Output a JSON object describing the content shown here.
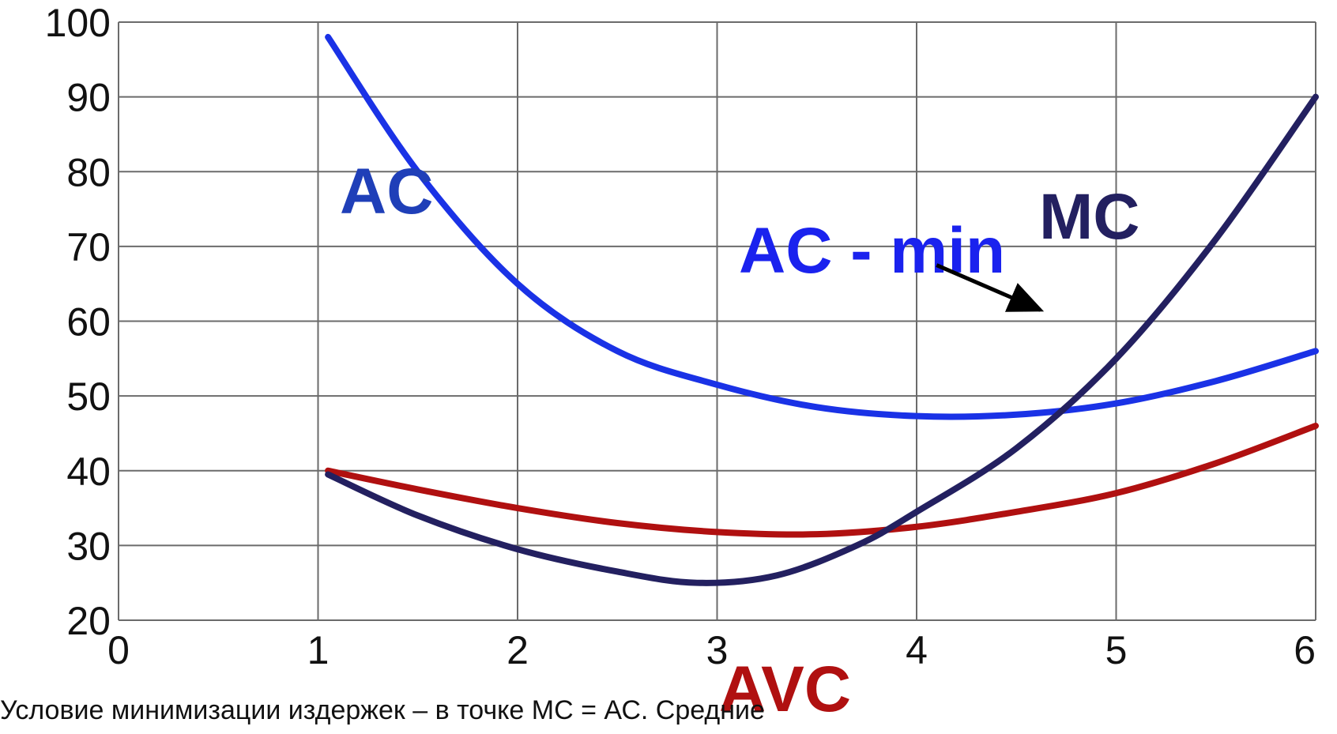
{
  "chart_data": {
    "type": "line",
    "x_ticks": [
      0,
      1,
      2,
      3,
      4,
      5,
      6
    ],
    "y_ticks": [
      20,
      30,
      40,
      50,
      60,
      70,
      80,
      90,
      100
    ],
    "xlim": [
      0,
      6
    ],
    "ylim": [
      20,
      100
    ],
    "grid": true,
    "series": [
      {
        "name": "AC",
        "color": "#1a32e6",
        "points": [
          [
            1.05,
            98
          ],
          [
            1.5,
            80
          ],
          [
            2.0,
            65
          ],
          [
            2.5,
            56
          ],
          [
            3.0,
            51.5
          ],
          [
            3.5,
            48.5
          ],
          [
            4.0,
            47.3
          ],
          [
            4.5,
            47.5
          ],
          [
            5.0,
            49
          ],
          [
            5.5,
            52
          ],
          [
            6.0,
            56
          ]
        ]
      },
      {
        "name": "AVC",
        "color": "#b01010",
        "points": [
          [
            1.05,
            40
          ],
          [
            1.5,
            37.5
          ],
          [
            2.0,
            35
          ],
          [
            2.5,
            33
          ],
          [
            3.0,
            31.8
          ],
          [
            3.5,
            31.5
          ],
          [
            4.0,
            32.5
          ],
          [
            4.5,
            34.5
          ],
          [
            5.0,
            37
          ],
          [
            5.5,
            41
          ],
          [
            6.0,
            46
          ]
        ]
      },
      {
        "name": "MC",
        "color": "#232060",
        "points": [
          [
            1.05,
            39.5
          ],
          [
            1.5,
            34
          ],
          [
            2.0,
            29.5
          ],
          [
            2.5,
            26.5
          ],
          [
            2.9,
            25
          ],
          [
            3.3,
            26
          ],
          [
            3.7,
            30
          ],
          [
            4.0,
            34.5
          ],
          [
            4.5,
            43
          ],
          [
            5.0,
            55
          ],
          [
            5.5,
            71
          ],
          [
            6.0,
            90
          ]
        ]
      }
    ],
    "annotations": {
      "ac_label": "AC",
      "mc_label": "MC",
      "avc_label": "AVC",
      "ac_min_label": "AC - min"
    },
    "arrow": {
      "from": [
        4.1,
        67.5
      ],
      "to": [
        4.62,
        61.5
      ]
    }
  },
  "caption": "Условие минимизации издержек – в  точке МС = АС. Средние"
}
